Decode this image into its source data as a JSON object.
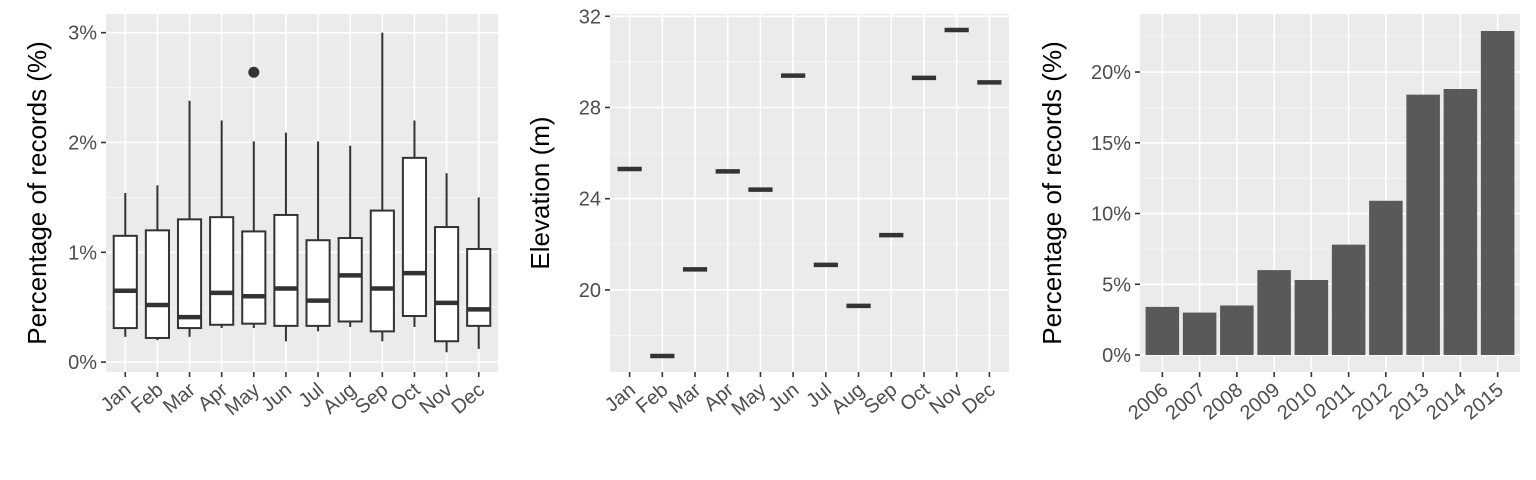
{
  "chart_data": [
    {
      "type": "boxplot",
      "title": "",
      "xlabel": "",
      "ylabel": "Percentage of records (%)",
      "categories": [
        "Jan",
        "Feb",
        "Mar",
        "Apr",
        "May",
        "Jun",
        "Jul",
        "Aug",
        "Sep",
        "Oct",
        "Nov",
        "Dec"
      ],
      "boxes": [
        {
          "min": 0.23,
          "q1": 0.31,
          "median": 0.65,
          "q3": 1.15,
          "max": 1.54,
          "outliers": []
        },
        {
          "min": 0.2,
          "q1": 0.22,
          "median": 0.52,
          "q3": 1.2,
          "max": 1.61,
          "outliers": []
        },
        {
          "min": 0.23,
          "q1": 0.31,
          "median": 0.41,
          "q3": 1.3,
          "max": 2.38,
          "outliers": []
        },
        {
          "min": 0.31,
          "q1": 0.34,
          "median": 0.63,
          "q3": 1.32,
          "max": 2.2,
          "outliers": []
        },
        {
          "min": 0.31,
          "q1": 0.35,
          "median": 0.6,
          "q3": 1.19,
          "max": 2.01,
          "outliers": [
            2.64
          ]
        },
        {
          "min": 0.19,
          "q1": 0.33,
          "median": 0.67,
          "q3": 1.34,
          "max": 2.09,
          "outliers": []
        },
        {
          "min": 0.28,
          "q1": 0.33,
          "median": 0.56,
          "q3": 1.11,
          "max": 2.01,
          "outliers": []
        },
        {
          "min": 0.32,
          "q1": 0.37,
          "median": 0.79,
          "q3": 1.13,
          "max": 1.97,
          "outliers": []
        },
        {
          "min": 0.19,
          "q1": 0.28,
          "median": 0.67,
          "q3": 1.38,
          "max": 3.0,
          "outliers": []
        },
        {
          "min": 0.32,
          "q1": 0.42,
          "median": 0.81,
          "q3": 1.86,
          "max": 2.2,
          "outliers": []
        },
        {
          "min": 0.09,
          "q1": 0.19,
          "median": 0.54,
          "q3": 1.23,
          "max": 1.72,
          "outliers": []
        },
        {
          "min": 0.12,
          "q1": 0.33,
          "median": 0.48,
          "q3": 1.03,
          "max": 1.5,
          "outliers": []
        }
      ],
      "yticks": [
        0,
        1,
        2,
        3
      ],
      "ytick_labels": [
        "0%",
        "1%",
        "2%",
        "3%"
      ],
      "ylim": [
        -0.09,
        3.17
      ],
      "grid": true
    },
    {
      "type": "point-range",
      "title": "",
      "xlabel": "",
      "ylabel": "Elevation (m)",
      "categories": [
        "Jan",
        "Feb",
        "Mar",
        "Apr",
        "May",
        "Jun",
        "Jul",
        "Aug",
        "Sep",
        "Oct",
        "Nov",
        "Dec"
      ],
      "values": [
        25.3,
        17.1,
        20.9,
        25.2,
        24.4,
        29.4,
        21.1,
        19.3,
        22.4,
        29.3,
        31.4,
        29.1
      ],
      "yticks": [
        20,
        24,
        28,
        32
      ],
      "ytick_labels": [
        "20",
        "24",
        "28",
        "32"
      ],
      "ylim": [
        16.4,
        32.1
      ],
      "grid": true
    },
    {
      "type": "bar",
      "title": "",
      "xlabel": "",
      "ylabel": "Percentage of records (%)",
      "categories": [
        "2006",
        "2007",
        "2008",
        "2009",
        "2010",
        "2011",
        "2012",
        "2013",
        "2014",
        "2015"
      ],
      "values": [
        3.4,
        3.0,
        3.5,
        6.0,
        5.3,
        7.8,
        10.9,
        18.4,
        18.8,
        22.9
      ],
      "yticks": [
        0,
        5,
        10,
        15,
        20
      ],
      "ytick_labels": [
        "0%",
        "5%",
        "10%",
        "15%",
        "20%"
      ],
      "ylim": [
        -1.2,
        24.1
      ],
      "grid": true,
      "bar_color": "#595959"
    }
  ]
}
